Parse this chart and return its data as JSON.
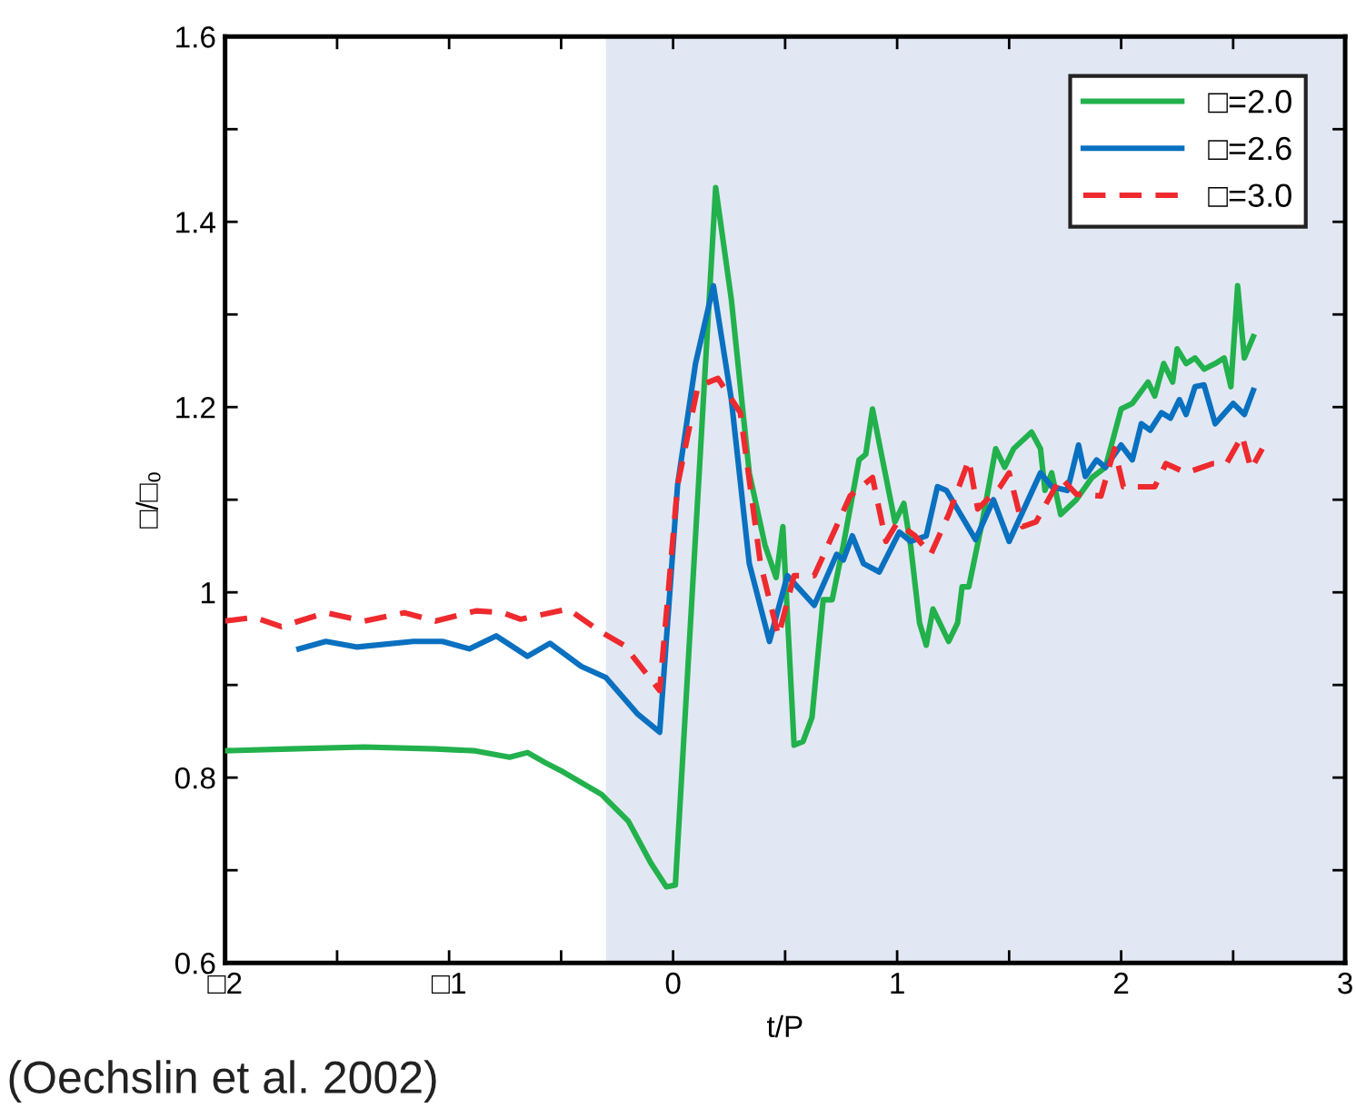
{
  "chart_data": {
    "type": "line",
    "xlabel": "t/P",
    "ylabel": "□/□₀",
    "xlim": [
      -2,
      3
    ],
    "xticks": [
      {
        "value": -2,
        "label": "□2"
      },
      {
        "value": -1.5,
        "label": null
      },
      {
        "value": -1,
        "label": "□1"
      },
      {
        "value": -0.5,
        "label": null
      },
      0,
      {
        "value": 0.5,
        "label": null
      },
      1,
      {
        "value": 1.5,
        "label": null
      },
      2,
      {
        "value": 2.5,
        "label": null
      },
      3
    ],
    "ylim": [
      0.6,
      1.6
    ],
    "yticks": [
      0.6,
      {
        "value": 0.7,
        "label": null
      },
      0.8,
      {
        "value": 0.9,
        "label": null
      },
      1,
      {
        "value": 1.1,
        "label": null
      },
      1.2,
      {
        "value": 1.3,
        "label": null
      },
      1.4,
      {
        "value": 1.5,
        "label": null
      },
      1.6
    ],
    "grid": false,
    "legend": "top right",
    "marker": "none",
    "bands": [
      {
        "axis": "x",
        "from": -0.3,
        "to": 3,
        "color": "#e1e8f3"
      }
    ],
    "annotations": [
      "(Oechslin et al. 2002)"
    ],
    "series": [
      {
        "name": "□=2.0",
        "color": "#22b14c",
        "line_style": "solid",
        "x": [
          -2.0,
          -1.71,
          -1.38,
          -1.06,
          -0.89,
          -0.73,
          -0.65,
          -0.57,
          -0.49,
          -0.32,
          -0.2,
          -0.1,
          -0.03,
          0.01,
          0.19,
          0.26,
          0.34,
          0.41,
          0.46,
          0.49,
          0.54,
          0.58,
          0.62,
          0.67,
          0.71,
          0.76,
          0.83,
          0.86,
          0.89,
          0.93,
          0.99,
          1.03,
          1.06,
          1.1,
          1.13,
          1.16,
          1.23,
          1.27,
          1.29,
          1.32,
          1.38,
          1.44,
          1.48,
          1.52,
          1.6,
          1.64,
          1.66,
          1.69,
          1.73,
          1.8,
          1.87,
          1.93,
          2.0,
          2.05,
          2.12,
          2.15,
          2.19,
          2.23,
          2.25,
          2.29,
          2.33,
          2.37,
          2.42,
          2.46,
          2.49,
          2.52,
          2.55,
          2.59
        ],
        "values": [
          0.829,
          0.831,
          0.833,
          0.831,
          0.829,
          0.822,
          0.827,
          0.816,
          0.806,
          0.782,
          0.753,
          0.708,
          0.682,
          0.684,
          1.437,
          1.316,
          1.129,
          1.051,
          1.016,
          1.071,
          0.835,
          0.839,
          0.865,
          0.992,
          0.992,
          1.051,
          1.143,
          1.149,
          1.198,
          1.149,
          1.076,
          1.096,
          1.051,
          0.967,
          0.943,
          0.982,
          0.947,
          0.967,
          1.006,
          1.006,
          1.076,
          1.155,
          1.135,
          1.155,
          1.173,
          1.155,
          1.11,
          1.129,
          1.084,
          1.1,
          1.124,
          1.135,
          1.198,
          1.204,
          1.227,
          1.212,
          1.247,
          1.227,
          1.263,
          1.247,
          1.253,
          1.241,
          1.247,
          1.253,
          1.222,
          1.331,
          1.253,
          1.276
        ]
      },
      {
        "name": "□=2.6",
        "color": "#0a70c0",
        "line_style": "solid",
        "x": [
          -1.67,
          -1.55,
          -1.41,
          -1.16,
          -1.03,
          -0.91,
          -0.79,
          -0.65,
          -0.55,
          -0.41,
          -0.3,
          -0.16,
          -0.06,
          0.02,
          0.1,
          0.18,
          0.26,
          0.34,
          0.43,
          0.51,
          0.63,
          0.73,
          0.76,
          0.8,
          0.85,
          0.92,
          1.01,
          1.06,
          1.13,
          1.18,
          1.22,
          1.35,
          1.43,
          1.5,
          1.64,
          1.69,
          1.76,
          1.81,
          1.84,
          1.89,
          1.93,
          2.0,
          2.05,
          2.09,
          2.13,
          2.18,
          2.22,
          2.26,
          2.29,
          2.33,
          2.37,
          2.42,
          2.5,
          2.55,
          2.59
        ],
        "values": [
          0.939,
          0.947,
          0.941,
          0.947,
          0.947,
          0.939,
          0.953,
          0.931,
          0.945,
          0.92,
          0.908,
          0.869,
          0.849,
          1.116,
          1.247,
          1.331,
          1.208,
          1.031,
          0.947,
          1.018,
          0.986,
          1.041,
          1.035,
          1.061,
          1.031,
          1.022,
          1.065,
          1.055,
          1.061,
          1.114,
          1.11,
          1.057,
          1.1,
          1.055,
          1.129,
          1.114,
          1.11,
          1.159,
          1.125,
          1.143,
          1.135,
          1.159,
          1.143,
          1.182,
          1.175,
          1.194,
          1.188,
          1.208,
          1.192,
          1.222,
          1.224,
          1.182,
          1.204,
          1.192,
          1.218
        ]
      },
      {
        "name": "□=3.0",
        "color": "#ee2a2e",
        "line_style": "dashed",
        "x": [
          -2.0,
          -1.87,
          -1.75,
          -1.55,
          -1.38,
          -1.2,
          -1.06,
          -0.88,
          -0.76,
          -0.68,
          -0.47,
          -0.32,
          -0.22,
          -0.06,
          0.02,
          0.11,
          0.2,
          0.3,
          0.39,
          0.47,
          0.54,
          0.63,
          0.79,
          0.89,
          0.95,
          1.0,
          1.08,
          1.15,
          1.23,
          1.32,
          1.36,
          1.46,
          1.5,
          1.56,
          1.62,
          1.73,
          1.8,
          1.91,
          1.97,
          2.01,
          2.15,
          2.2,
          2.29,
          2.41,
          2.47,
          2.54,
          2.58,
          2.63
        ],
        "values": [
          0.969,
          0.973,
          0.963,
          0.978,
          0.969,
          0.978,
          0.969,
          0.98,
          0.978,
          0.971,
          0.982,
          0.957,
          0.943,
          0.894,
          1.116,
          1.222,
          1.231,
          1.194,
          1.031,
          0.953,
          1.018,
          1.018,
          1.104,
          1.124,
          1.055,
          1.075,
          1.061,
          1.041,
          1.084,
          1.143,
          1.09,
          1.114,
          1.129,
          1.071,
          1.076,
          1.124,
          1.106,
          1.104,
          1.155,
          1.114,
          1.114,
          1.139,
          1.129,
          1.139,
          1.139,
          1.169,
          1.133,
          1.155
        ]
      }
    ]
  }
}
